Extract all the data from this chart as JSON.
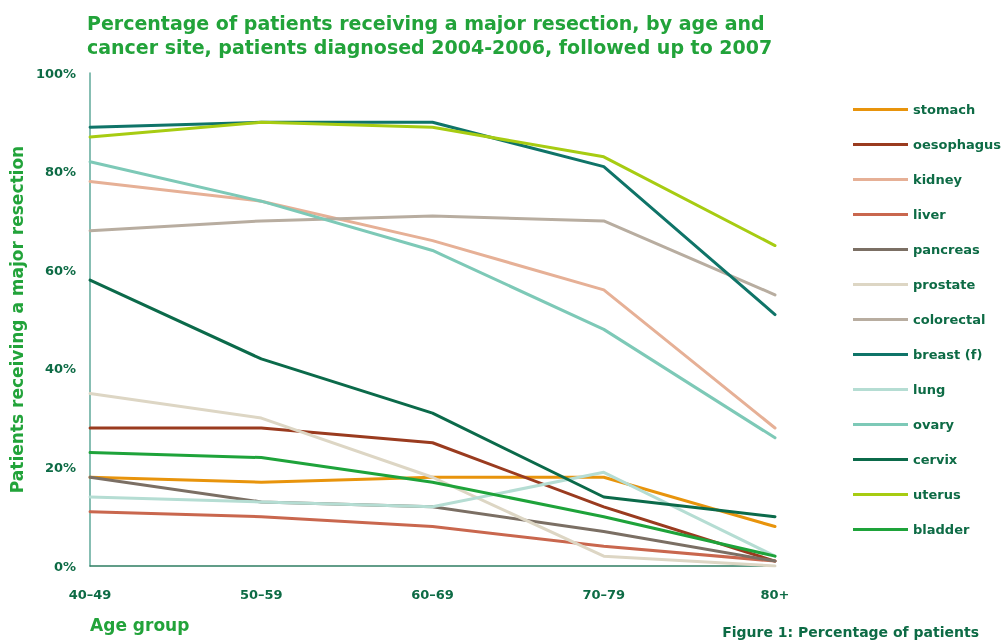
{
  "chart_data": {
    "type": "line",
    "title": "Percentage of patients receiving a major resection, by age and cancer site, patients diagnosed 2004-2006, followed up to 2007",
    "xlabel": "Age group",
    "ylabel": "Patients receiving a major resection",
    "annotations": [
      "Figure 1: Percentage of patients"
    ],
    "categories": [
      "40–49",
      "50–59",
      "60–69",
      "70–79",
      "80+"
    ],
    "ylim": [
      0,
      100
    ],
    "yticks": [
      {
        "value": 0,
        "label": "0%"
      },
      {
        "value": 20,
        "label": "20%"
      },
      {
        "value": 40,
        "label": "40%"
      },
      {
        "value": 60,
        "label": "60%"
      },
      {
        "value": 80,
        "label": "80%"
      },
      {
        "value": 100,
        "label": "100%"
      }
    ],
    "grid": false,
    "legend": "right",
    "marker": "none",
    "line_style": "solid",
    "series": [
      {
        "name": "stomach",
        "color": "#e8940c",
        "values": [
          18,
          17,
          18,
          18,
          8
        ]
      },
      {
        "name": "oesophagus",
        "color": "#9a3b1f",
        "values": [
          28,
          28,
          25,
          12,
          1
        ]
      },
      {
        "name": "kidney",
        "color": "#e6b096",
        "values": [
          78,
          74,
          66,
          56,
          28
        ]
      },
      {
        "name": "liver",
        "color": "#c9674e",
        "values": [
          11,
          10,
          8,
          4,
          1
        ]
      },
      {
        "name": "pancreas",
        "color": "#7b6f64",
        "values": [
          18,
          13,
          12,
          7,
          1
        ]
      },
      {
        "name": "prostate",
        "color": "#ddd6c4",
        "values": [
          35,
          30,
          18,
          2,
          0
        ]
      },
      {
        "name": "colorectal",
        "color": "#b8ada0",
        "values": [
          68,
          70,
          71,
          70,
          55
        ]
      },
      {
        "name": "breast (f)",
        "color": "#0f7468",
        "values": [
          89,
          90,
          90,
          81,
          51
        ]
      },
      {
        "name": "lung",
        "color": "#b5ddd3",
        "values": [
          14,
          13,
          12,
          19,
          2
        ]
      },
      {
        "name": "ovary",
        "color": "#7dc9b7",
        "values": [
          82,
          74,
          64,
          48,
          26
        ]
      },
      {
        "name": "cervix",
        "color": "#0b6a4a",
        "values": [
          58,
          42,
          31,
          14,
          10
        ]
      },
      {
        "name": "uterus",
        "color": "#a7cc12",
        "values": [
          87,
          90,
          89,
          83,
          65
        ]
      },
      {
        "name": "bladder",
        "color": "#1ea33a",
        "values": [
          23,
          22,
          17,
          10,
          2
        ]
      }
    ]
  }
}
